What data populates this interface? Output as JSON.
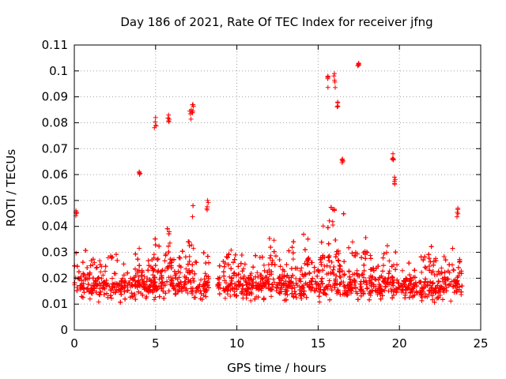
{
  "chart_data": {
    "type": "scatter",
    "title": "Day 186 of 2021, Rate Of TEC Index for receiver jfng",
    "xlabel": "GPS time / hours",
    "ylabel": "ROTI / TECUs",
    "xlim": [
      0,
      25
    ],
    "ylim": [
      0,
      0.11
    ],
    "x_ticks": [
      "0",
      "5",
      "10",
      "15",
      "20",
      "25"
    ],
    "y_ticks": [
      "0",
      "0.01",
      "0.02",
      "0.03",
      "0.04",
      "0.05",
      "0.06",
      "0.07",
      "0.08",
      "0.09",
      "0.1",
      "0.11"
    ],
    "grid": true,
    "marker": "+",
    "marker_color": "#ff0000",
    "x_range_observed": [
      0,
      23.9
    ],
    "bulk_y_range": [
      0.005,
      0.03
    ],
    "notable_points": [
      {
        "x": 0.1,
        "y": 0.046
      },
      {
        "x": 4.0,
        "y": 0.061
      },
      {
        "x": 5.0,
        "y": 0.082
      },
      {
        "x": 5.8,
        "y": 0.083
      },
      {
        "x": 7.3,
        "y": 0.087
      },
      {
        "x": 7.2,
        "y": 0.085
      },
      {
        "x": 8.2,
        "y": 0.05
      },
      {
        "x": 15.6,
        "y": 0.098
      },
      {
        "x": 16.0,
        "y": 0.099
      },
      {
        "x": 16.2,
        "y": 0.088
      },
      {
        "x": 16.5,
        "y": 0.066
      },
      {
        "x": 17.5,
        "y": 0.103
      },
      {
        "x": 19.6,
        "y": 0.068
      },
      {
        "x": 19.7,
        "y": 0.059
      },
      {
        "x": 23.6,
        "y": 0.047
      }
    ]
  }
}
